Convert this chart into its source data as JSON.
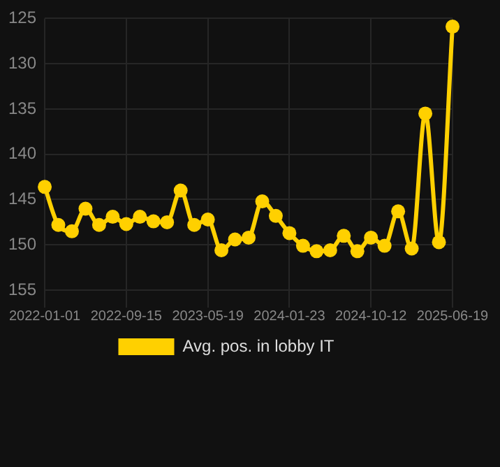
{
  "chart_data": {
    "type": "line",
    "categories": [
      "2022-01-01",
      null,
      null,
      null,
      null,
      null,
      "2022-09-15",
      null,
      null,
      null,
      null,
      null,
      "2023-05-19",
      null,
      null,
      null,
      null,
      null,
      "2024-01-23",
      null,
      null,
      null,
      null,
      null,
      "2024-10-12",
      null,
      null,
      null,
      null,
      null,
      "2025-06-19"
    ],
    "series": [
      {
        "name": "Avg. pos. in lobby IT",
        "color": "#ffd000",
        "values": [
          143.6,
          147.8,
          148.5,
          146.0,
          147.8,
          146.9,
          147.7,
          146.9,
          147.4,
          147.5,
          144.0,
          147.8,
          147.2,
          150.6,
          149.4,
          149.2,
          145.2,
          146.8,
          148.7,
          150.1,
          150.7,
          150.6,
          149.0,
          150.7,
          149.2,
          150.1,
          146.3,
          150.4,
          135.5,
          149.7,
          125.9
        ]
      }
    ],
    "ylim": [
      156,
      125
    ],
    "yticks": [
      125,
      130,
      135,
      140,
      145,
      150,
      155
    ],
    "grid": true,
    "legend": "bottom",
    "marker": "circle",
    "line_style": "solid"
  }
}
